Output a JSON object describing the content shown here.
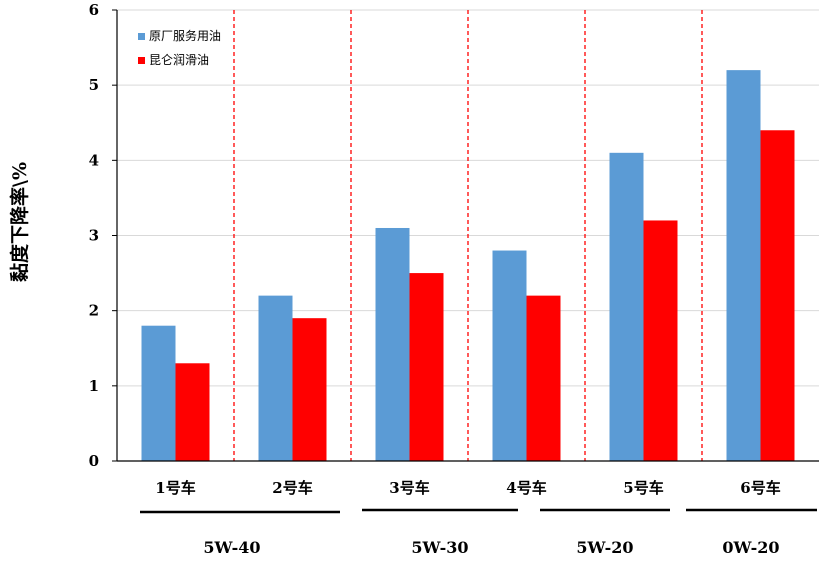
{
  "chart_data": {
    "type": "bar",
    "title": "",
    "xlabel": "",
    "ylabel": "黏度下降率\\%",
    "ylim": [
      0,
      6
    ],
    "yticks": [
      "0",
      "1",
      "2",
      "3",
      "4",
      "5",
      "6"
    ],
    "grid": true,
    "legend_position": "top-left",
    "categories": [
      "1号车",
      "2号车",
      "3号车",
      "4号车",
      "5号车",
      "6号车"
    ],
    "series": [
      {
        "name": "原厂服务用油",
        "color": "#5B9BD5",
        "values": [
          1.8,
          2.2,
          3.1,
          2.8,
          4.1,
          5.2
        ]
      },
      {
        "name": "昆仑润滑油",
        "color": "#FF0000",
        "values": [
          1.3,
          1.9,
          2.5,
          2.2,
          3.2,
          4.4
        ]
      }
    ],
    "groups": [
      {
        "label": "5W-40",
        "categories": [
          0,
          1
        ]
      },
      {
        "label": "5W-30",
        "categories": [
          2,
          3
        ]
      },
      {
        "label": "5W-20",
        "categories": [
          4
        ]
      },
      {
        "label": "0W-20",
        "categories": [
          5
        ]
      }
    ],
    "separator_color": "#FF0000"
  }
}
